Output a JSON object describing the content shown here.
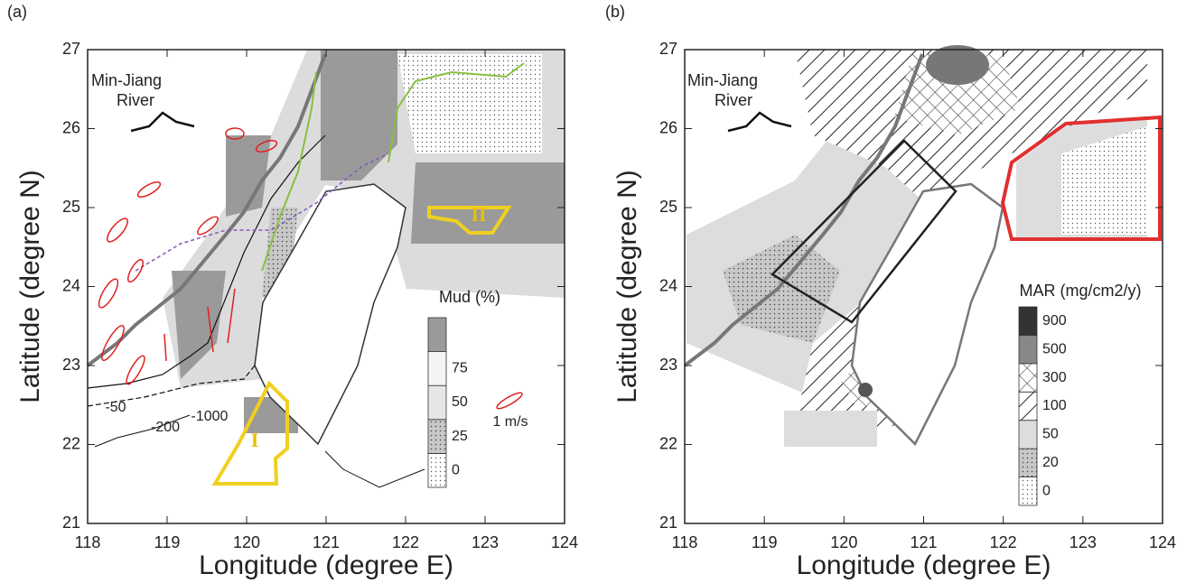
{
  "panels": [
    {
      "label": "(a)",
      "xlabel": "Longitude (degree E)",
      "ylabel": "Latitude (degree N)",
      "xlim": [
        118,
        124
      ],
      "ylim": [
        21,
        27
      ],
      "xticks": [
        118,
        119,
        120,
        121,
        122,
        123,
        124
      ],
      "yticks": [
        21,
        22,
        23,
        24,
        25,
        26,
        27
      ],
      "place_labels": [
        "Min-Jiang",
        "River"
      ],
      "region_labels": [
        "I",
        "II"
      ],
      "contour_labels": [
        "-50",
        "-200",
        "-1000"
      ],
      "legend": {
        "title": "Mud (%)",
        "ticks": [
          0,
          25,
          50,
          75
        ]
      },
      "vector_scale": "1 m/s"
    },
    {
      "label": "(b)",
      "xlabel": "Longitude (degree E)",
      "ylabel": "Latitude (degree N)",
      "xlim": [
        118,
        124
      ],
      "ylim": [
        21,
        27
      ],
      "xticks": [
        118,
        119,
        120,
        121,
        122,
        123,
        124
      ],
      "yticks": [
        21,
        22,
        23,
        24,
        25,
        26,
        27
      ],
      "place_labels": [
        "Min-Jiang",
        "River"
      ],
      "legend": {
        "title": "MAR (mg/cm2/y)",
        "ticks": [
          0,
          20,
          50,
          100,
          300,
          500,
          900
        ]
      }
    }
  ]
}
